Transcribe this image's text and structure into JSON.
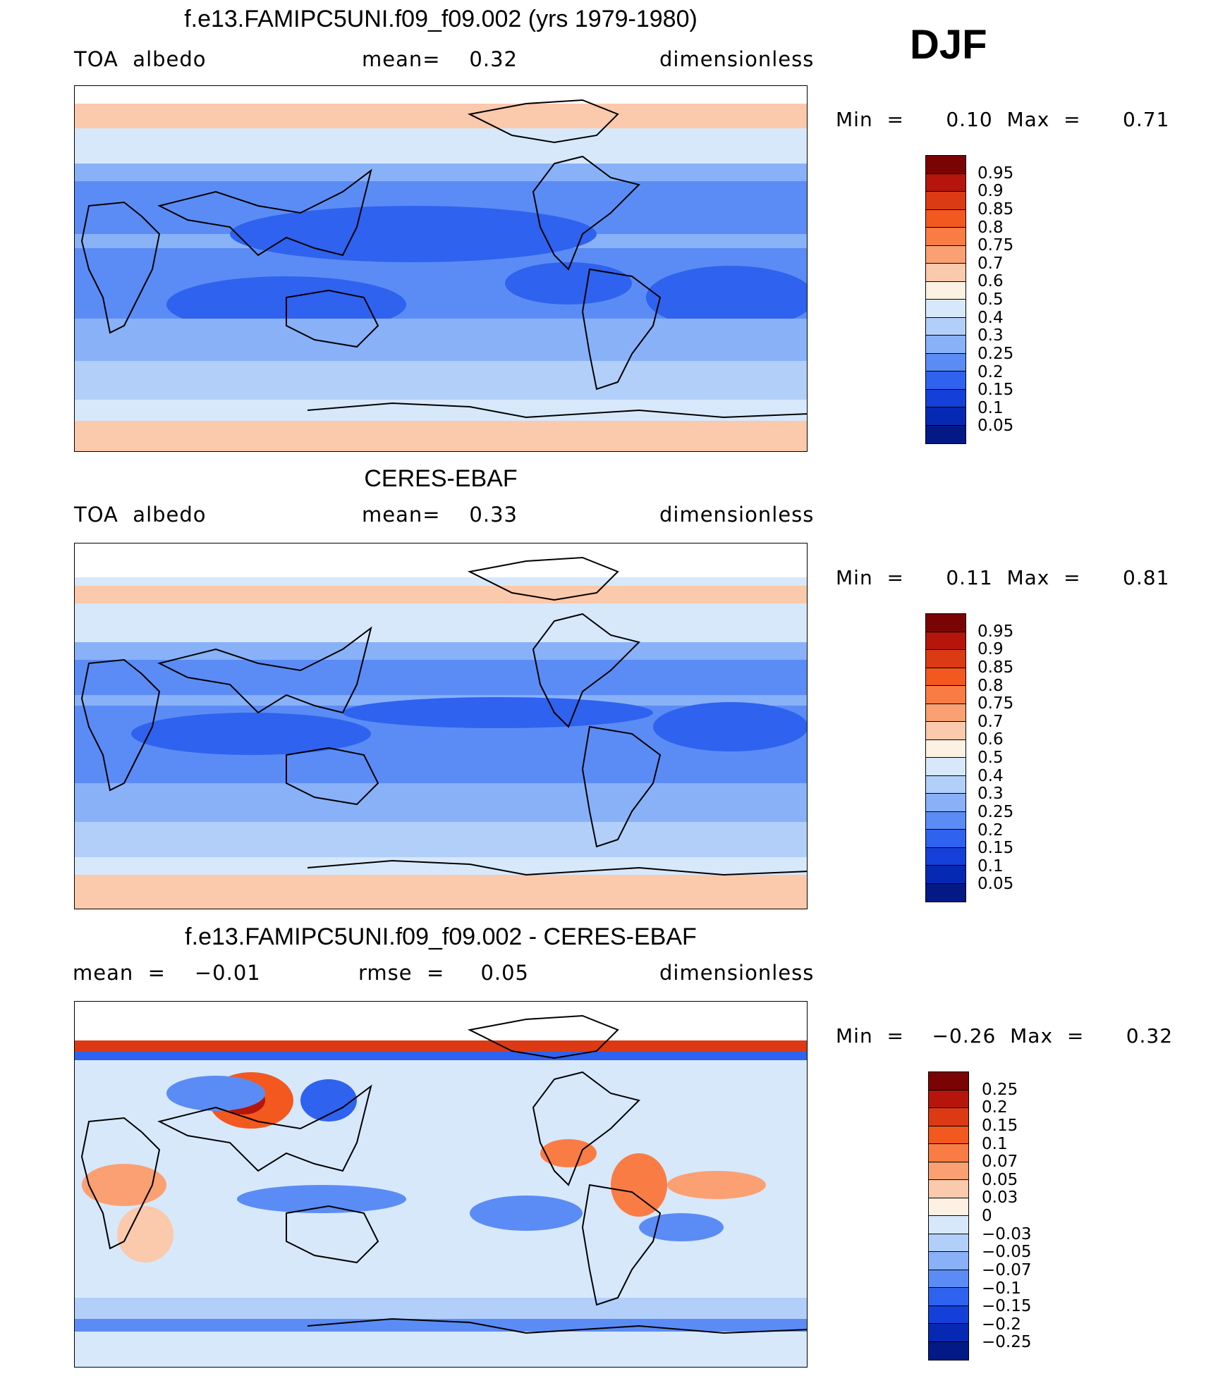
{
  "season": "DJF",
  "panels": [
    {
      "title": "f.e13.FAMIPC5UNI.f09_f09.002 (yrs 1979-1980)",
      "left_label": "TOA  albedo",
      "center_label": "mean=    0.32",
      "right_label": "dimensionless",
      "minmax": "Min  =      0.10  Max  =      0.71",
      "colorbar_levels": [
        "0.95",
        "0.9",
        "0.85",
        "0.8",
        "0.75",
        "0.7",
        "0.6",
        "0.5",
        "0.4",
        "0.3",
        "0.25",
        "0.2",
        "0.15",
        "0.1",
        "0.05"
      ],
      "colorbar_colors": [
        "#7a0403",
        "#b5150b",
        "#dc3a14",
        "#f3581f",
        "#fa7c45",
        "#fba073",
        "#fbc9ab",
        "#fdf1e3",
        "#d7e8fb",
        "#b2cffa",
        "#88b1f8",
        "#5b8cf5",
        "#2f62ee",
        "#1440d9",
        "#0629b3",
        "#031a86"
      ]
    },
    {
      "title": "CERES-EBAF",
      "left_label": "TOA  albedo",
      "center_label": "mean=    0.33",
      "right_label": "dimensionless",
      "minmax": "Min  =      0.11  Max  =      0.81",
      "colorbar_levels": [
        "0.95",
        "0.9",
        "0.85",
        "0.8",
        "0.75",
        "0.7",
        "0.6",
        "0.5",
        "0.4",
        "0.3",
        "0.25",
        "0.2",
        "0.15",
        "0.1",
        "0.05"
      ],
      "colorbar_colors": [
        "#7a0403",
        "#b5150b",
        "#dc3a14",
        "#f3581f",
        "#fa7c45",
        "#fba073",
        "#fbc9ab",
        "#fdf1e3",
        "#d7e8fb",
        "#b2cffa",
        "#88b1f8",
        "#5b8cf5",
        "#2f62ee",
        "#1440d9",
        "#0629b3",
        "#031a86"
      ]
    },
    {
      "title": "f.e13.FAMIPC5UNI.f09_f09.002 - CERES-EBAF",
      "left_label": "mean  =    −0.01",
      "center_label": "rmse  =     0.05",
      "right_label": "dimensionless",
      "minmax": "Min  =    −0.26  Max  =      0.32",
      "colorbar_levels": [
        "0.25",
        "0.2",
        "0.15",
        "0.1",
        "0.07",
        "0.05",
        "0.03",
        "0",
        "−0.03",
        "−0.05",
        "−0.07",
        "−0.1",
        "−0.15",
        "−0.2",
        "−0.25"
      ],
      "colorbar_colors": [
        "#7a0403",
        "#b5150b",
        "#dc3a14",
        "#f3581f",
        "#fa7c45",
        "#fba073",
        "#fbc9ab",
        "#fdf1e3",
        "#d7e8fb",
        "#b2cffa",
        "#88b1f8",
        "#5b8cf5",
        "#2f62ee",
        "#1440d9",
        "#0629b3",
        "#031a86"
      ]
    }
  ]
}
